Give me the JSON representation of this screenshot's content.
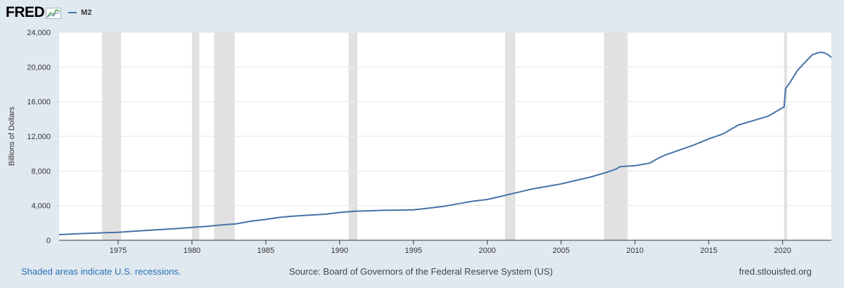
{
  "header": {
    "logo_text": "FRED",
    "logo_icon": "line-chart-icon",
    "legend_label": "M2"
  },
  "footer": {
    "left": "Shaded areas indicate U.S. recessions.",
    "source": "Source: Board of Governors of the Federal Reserve System (US)",
    "site": "fred.stlouisfed.org"
  },
  "colors": {
    "background": "#e1e9f0",
    "plot_background": "#ffffff",
    "series": "#4572a7",
    "recession": "#e1e1e1",
    "footer_link": "#2a6fb4"
  },
  "chart_data": {
    "type": "line",
    "title": "",
    "xlabel": "",
    "ylabel": "Billions of Dollars",
    "xlim": [
      1971,
      2023.3
    ],
    "ylim": [
      0,
      24000
    ],
    "x_ticks": [
      1975,
      1980,
      1985,
      1990,
      1995,
      2000,
      2005,
      2010,
      2015,
      2020
    ],
    "x_tick_labels": [
      "1975",
      "1980",
      "1985",
      "1990",
      "1995",
      "2000",
      "2005",
      "2010",
      "2015",
      "2020"
    ],
    "y_ticks": [
      0,
      4000,
      8000,
      12000,
      16000,
      20000,
      24000
    ],
    "y_tick_labels": [
      "0",
      "4,000",
      "8,000",
      "12,000",
      "16,000",
      "20,000",
      "24,000"
    ],
    "grid": "horizontal",
    "recessions": [
      [
        1973.9,
        1975.2
      ],
      [
        1980.0,
        1980.5
      ],
      [
        1981.5,
        1982.9
      ],
      [
        1990.6,
        1991.2
      ],
      [
        2001.2,
        2001.9
      ],
      [
        2007.9,
        2009.5
      ],
      [
        2020.1,
        2020.3
      ]
    ],
    "series": [
      {
        "name": "M2",
        "x": [
          1971,
          1972,
          1973,
          1974,
          1975,
          1976,
          1977,
          1978,
          1979,
          1980,
          1981,
          1982,
          1983,
          1984,
          1985,
          1986,
          1987,
          1988,
          1989,
          1990,
          1991,
          1992,
          1993,
          1994,
          1995,
          1996,
          1997,
          1998,
          1999,
          2000,
          2001,
          2002,
          2003,
          2004,
          2005,
          2006,
          2007,
          2008,
          2008.7,
          2009,
          2010,
          2011,
          2011.5,
          2012,
          2013,
          2014,
          2015,
          2016,
          2017,
          2018,
          2019,
          2020.1,
          2020.2,
          2020.5,
          2021,
          2021.5,
          2022,
          2022.5,
          2022.8,
          2023.1,
          2023.3
        ],
        "y": [
          650,
          730,
          800,
          860,
          920,
          1030,
          1140,
          1250,
          1350,
          1480,
          1600,
          1760,
          1900,
          2200,
          2400,
          2650,
          2800,
          2900,
          3000,
          3200,
          3350,
          3400,
          3450,
          3480,
          3500,
          3700,
          3900,
          4200,
          4500,
          4700,
          5100,
          5500,
          5900,
          6200,
          6500,
          6900,
          7300,
          7800,
          8200,
          8500,
          8600,
          8900,
          9400,
          9800,
          10400,
          11000,
          11700,
          12300,
          13300,
          13800,
          14300,
          15400,
          17500,
          18200,
          19600,
          20500,
          21400,
          21700,
          21650,
          21400,
          21100
        ]
      }
    ]
  }
}
